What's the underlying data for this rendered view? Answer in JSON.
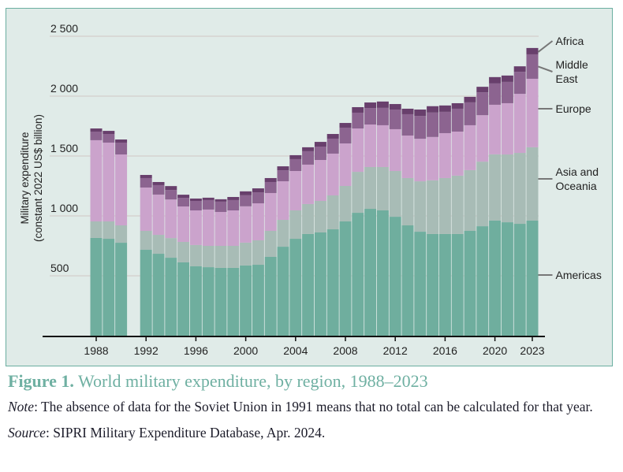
{
  "figure": {
    "label": "Figure 1.",
    "title": "World military expenditure, by region, 1988–2023",
    "note_label": "Note",
    "note_text": ": The absence of data for the Soviet Union in 1991 means that no total can be calculated for that year.",
    "source_label": "Source",
    "source_text": ": SIPRI Military Expenditure Database, Apr. 2024."
  },
  "colors": {
    "Americas": "#6fae9e",
    "Asia and Oceania": "#a8bcb6",
    "Europe": "#cba3cc",
    "Middle East": "#8c6490",
    "Africa": "#683f6c",
    "background": "#e0ebe8",
    "frame": "#6aaea0",
    "caption_accent": "#6fb0a2"
  },
  "chart_data": {
    "type": "bar",
    "stacked": true,
    "title": "",
    "xlabel": "",
    "ylabel": "Military expenditure\n(constant 2022 US$ billion)",
    "ylim": [
      0,
      2500
    ],
    "yticks": [
      500,
      1000,
      1500,
      2000,
      2500
    ],
    "ytick_labels": [
      "500",
      "1 000",
      "1 500",
      "2 000",
      "2 500"
    ],
    "xticks": [
      "1988",
      "1992",
      "1996",
      "2000",
      "2004",
      "2008",
      "2012",
      "2016",
      "2020",
      "2023"
    ],
    "grid": true,
    "legend": "right, labels beside last bar",
    "categories": [
      "1988",
      "1989",
      "1990",
      "1991",
      "1992",
      "1993",
      "1994",
      "1995",
      "1996",
      "1997",
      "1998",
      "1999",
      "2000",
      "2001",
      "2002",
      "2003",
      "2004",
      "2005",
      "2006",
      "2007",
      "2008",
      "2009",
      "2010",
      "2011",
      "2012",
      "2013",
      "2014",
      "2015",
      "2016",
      "2017",
      "2018",
      "2019",
      "2020",
      "2021",
      "2022",
      "2023"
    ],
    "series": [
      {
        "name": "Americas",
        "legend_label": "Americas",
        "values": [
          816,
          809,
          776,
          null,
          717,
          684,
          651,
          612,
          579,
          572,
          566,
          566,
          586,
          592,
          658,
          743,
          809,
          849,
          862,
          888,
          954,
          1026,
          1059,
          1046,
          993,
          921,
          868,
          849,
          849,
          849,
          875,
          914,
          961,
          947,
          934,
          961
        ]
      },
      {
        "name": "Asia and Oceania",
        "legend_label": "Asia and\nOceania",
        "values": [
          138,
          145,
          145,
          null,
          158,
          158,
          164,
          171,
          178,
          178,
          184,
          184,
          191,
          204,
          217,
          224,
          237,
          250,
          263,
          283,
          296,
          342,
          349,
          362,
          382,
          395,
          421,
          448,
          467,
          487,
          507,
          539,
          553,
          566,
          592,
          612
        ]
      },
      {
        "name": "Europe",
        "legend_label": "Europe",
        "values": [
          678,
          658,
          592,
          null,
          362,
          336,
          322,
          296,
          289,
          303,
          283,
          296,
          303,
          309,
          316,
          322,
          329,
          329,
          342,
          349,
          355,
          362,
          355,
          349,
          349,
          355,
          355,
          362,
          375,
          368,
          375,
          388,
          414,
          428,
          493,
          572
        ]
      },
      {
        "name": "Middle East",
        "legend_label": "Middle\nEast",
        "values": [
          72,
          72,
          99,
          null,
          79,
          79,
          79,
          72,
          79,
          79,
          86,
          86,
          92,
          92,
          92,
          92,
          99,
          112,
          112,
          125,
          132,
          132,
          138,
          145,
          164,
          178,
          191,
          204,
          178,
          191,
          191,
          191,
          178,
          178,
          184,
          204
        ]
      },
      {
        "name": "Africa",
        "legend_label": "Africa",
        "values": [
          26,
          26,
          26,
          null,
          26,
          26,
          33,
          26,
          20,
          20,
          20,
          26,
          33,
          33,
          33,
          33,
          33,
          33,
          39,
          39,
          39,
          46,
          46,
          53,
          46,
          46,
          53,
          53,
          53,
          46,
          46,
          46,
          53,
          53,
          46,
          53
        ]
      }
    ]
  }
}
